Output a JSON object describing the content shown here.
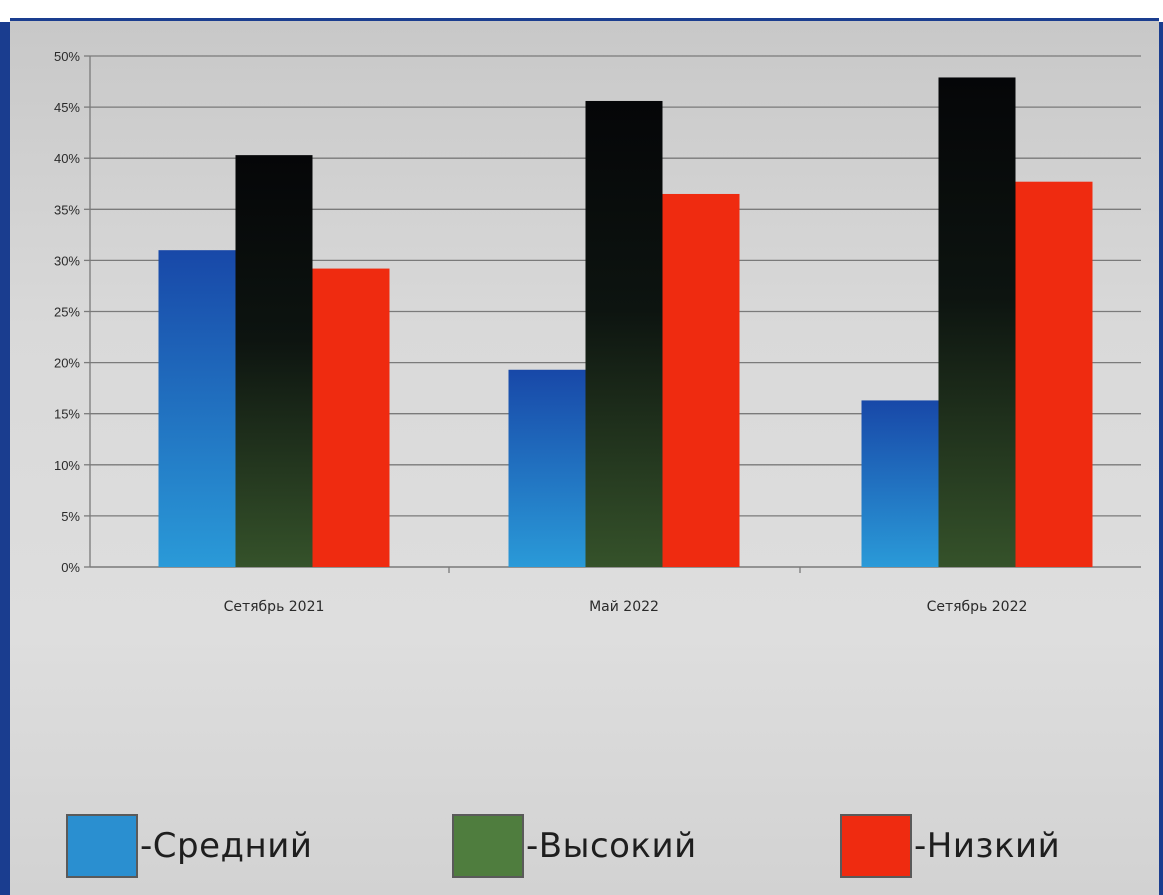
{
  "chart_data": {
    "type": "bar",
    "title": "",
    "xlabel": "",
    "ylabel": "",
    "categories": [
      "Сетябрь 2021",
      "Май  2022",
      "Сетябрь 2022"
    ],
    "series": [
      {
        "name": "-Средний",
        "values": [
          31,
          19.3,
          16.3
        ]
      },
      {
        "name": "-Высокий",
        "values": [
          40.3,
          45.6,
          47.9
        ]
      },
      {
        "name": "-Низкий",
        "values": [
          29.2,
          36.5,
          37.7
        ]
      }
    ],
    "ylim": [
      0,
      50
    ],
    "yticks": [
      "0%",
      "5%",
      "10%",
      "15%",
      "20%",
      "25%",
      "30%",
      "35%",
      "40%",
      "45%",
      "50%"
    ],
    "grid": true,
    "legend_position": "bottom"
  },
  "legend": {
    "items": [
      {
        "label": "-Средний",
        "color": "#2a8fd0"
      },
      {
        "label": "-Высокий",
        "color": "#4f7d3e"
      },
      {
        "label": "-Низкий",
        "color": "#ef2b10"
      }
    ]
  },
  "colors": {
    "sredniy_top": "#1848a8",
    "sredniy_bottom": "#2a9ad8",
    "vysokiy_top": "#050608",
    "vysokiy_bottom": "#35522a",
    "nizkiy": "#ef2b10",
    "gridline": "#7a7a7a",
    "frame": "#1a3d8f"
  }
}
